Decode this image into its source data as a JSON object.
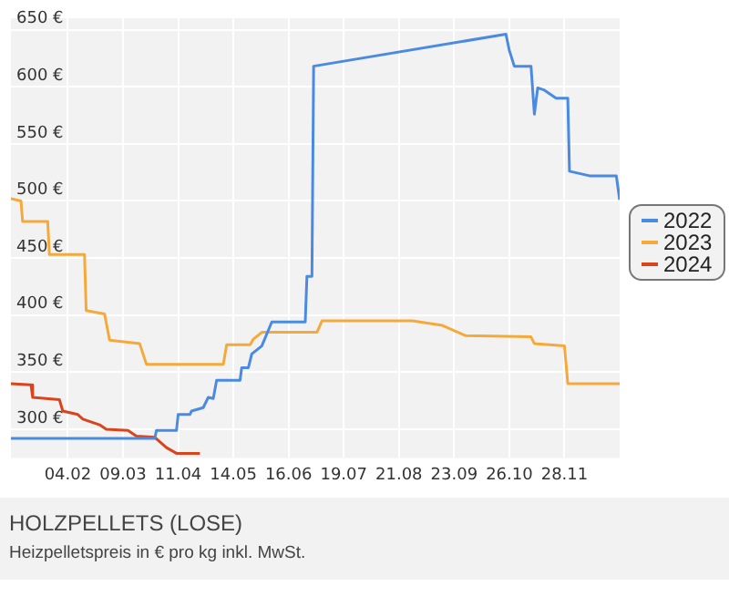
{
  "chart_data": {
    "type": "line",
    "title": "HOLZPELLETS (LOSE)",
    "subtitle": "Heizpelletspreis in € pro kg inkl. MwSt.",
    "xlim": [
      "--01-01",
      "--12-31"
    ],
    "xticks": [
      {
        "value": "--02-04",
        "label": "04.02"
      },
      {
        "value": "--03-09",
        "label": "09.03"
      },
      {
        "value": "--04-11",
        "label": "11.04"
      },
      {
        "value": "--05-14",
        "label": "14.05"
      },
      {
        "value": "--06-16",
        "label": "16.06"
      },
      {
        "value": "--07-19",
        "label": "19.07"
      },
      {
        "value": "--08-21",
        "label": "21.08"
      },
      {
        "value": "--09-23",
        "label": "23.09"
      },
      {
        "value": "--10-26",
        "label": "26.10"
      },
      {
        "value": "--11-28",
        "label": "28.11"
      }
    ],
    "ylim": [
      275,
      660
    ],
    "yticks": [
      {
        "value": 300,
        "label": "300 €"
      },
      {
        "value": 350,
        "label": "350 €"
      },
      {
        "value": 400,
        "label": "400 €"
      },
      {
        "value": 450,
        "label": "450 €"
      },
      {
        "value": 500,
        "label": "500 €"
      },
      {
        "value": 550,
        "label": "550 €"
      },
      {
        "value": 600,
        "label": "600 €"
      },
      {
        "value": 650,
        "label": "650 €"
      }
    ],
    "grid": true,
    "legend": "right",
    "marker": "none",
    "series": [
      {
        "name": "2022",
        "color": "#4a8ae0",
        "x": [
          "--01-01",
          "--03-28",
          "--03-29",
          "--04-10",
          "--04-11",
          "--04-18",
          "--04-19",
          "--04-26",
          "--04-29",
          "--05-02",
          "--05-04",
          "--05-18",
          "--05-19",
          "--05-23",
          "--05-25",
          "--05-31",
          "--06-06",
          "--06-26",
          "--06-27",
          "--06-30",
          "--07-01",
          "--10-24",
          "--10-26",
          "--10-29",
          "--11-08",
          "--11-10",
          "--11-12",
          "--11-16",
          "--11-23",
          "--11-30",
          "--12-01",
          "--12-13",
          "--12-29",
          "--12-31"
        ],
        "values": [
          292,
          292,
          299,
          299,
          313,
          313,
          316,
          319,
          328,
          327,
          343,
          343,
          354,
          354,
          366,
          373,
          394,
          394,
          434,
          434,
          618,
          646,
          632,
          618,
          618,
          576,
          599,
          597,
          590,
          590,
          526,
          522,
          522,
          501
        ]
      },
      {
        "name": "2023",
        "color": "#f5a93a",
        "x": [
          "--01-01",
          "--01-07",
          "--01-08",
          "--01-23",
          "--01-24",
          "--02-14",
          "--02-15",
          "--02-26",
          "--03-01",
          "--03-19",
          "--03-23",
          "--05-08",
          "--05-10",
          "--05-24",
          "--05-26",
          "--05-31",
          "--07-03",
          "--07-06",
          "--08-29",
          "--09-16",
          "--09-30",
          "--11-08",
          "--11-10",
          "--11-28",
          "--11-30",
          "--12-31"
        ],
        "values": [
          502,
          500,
          482,
          482,
          453,
          453,
          404,
          401,
          378,
          375,
          357,
          357,
          374,
          374,
          379,
          385,
          385,
          395,
          395,
          391,
          382,
          381,
          375,
          373,
          340,
          340
        ]
      },
      {
        "name": "2024",
        "color": "#d9441c",
        "x": [
          "--01-01",
          "--01-13",
          "--01-14",
          "--01-30",
          "--02-01",
          "--02-10",
          "--02-13",
          "--02-23",
          "--02-27",
          "--03-12",
          "--03-17",
          "--03-28",
          "--04-04",
          "--04-10",
          "--04-24"
        ],
        "values": [
          340,
          339,
          328,
          326,
          316,
          313,
          309,
          304,
          300,
          299,
          294,
          293,
          284,
          279,
          279
        ]
      }
    ]
  }
}
